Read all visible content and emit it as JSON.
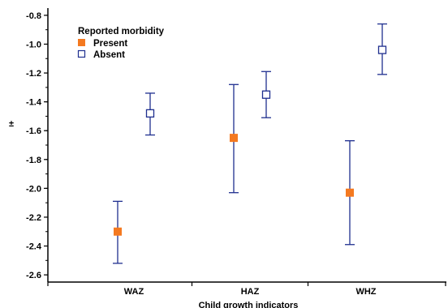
{
  "chart_data": {
    "type": "scatter",
    "xlabel": "Child growth indicators",
    "ylabel": "±",
    "categories": [
      "WAZ",
      "HAZ",
      "WHZ"
    ],
    "ylim": [
      -2.65,
      -0.75
    ],
    "yticks": [
      -0.8,
      -1.0,
      -1.2,
      -1.4,
      -1.6,
      -1.8,
      -2.0,
      -2.2,
      -2.4,
      -2.6
    ],
    "ytick_labels": [
      "-0.8",
      "-1.0",
      "-1.2",
      "-1.4",
      "-1.6",
      "-1.8",
      "-2.0",
      "-2.2",
      "-2.4",
      "-2.6"
    ],
    "grid": false,
    "legend": {
      "title": "Reported morbidity",
      "placement": "top-left"
    },
    "series": [
      {
        "name": "Present",
        "color": "#f47920",
        "marker": "filled-square",
        "values": [
          -2.3,
          -1.65,
          -2.03
        ],
        "lower": [
          -2.52,
          -2.03,
          -2.39
        ],
        "upper": [
          -2.09,
          -1.28,
          -1.67
        ]
      },
      {
        "name": "Absent",
        "color": "#1f2f8f",
        "marker": "open-square",
        "values": [
          -1.48,
          -1.35,
          -1.04
        ],
        "lower": [
          -1.63,
          -1.51,
          -1.21
        ],
        "upper": [
          -1.34,
          -1.19,
          -0.86
        ]
      }
    ]
  }
}
